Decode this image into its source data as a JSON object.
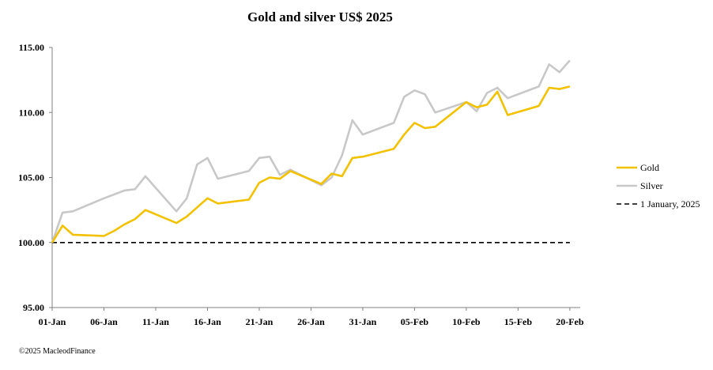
{
  "footer": {
    "copyright": "©2025 MacleodFinance"
  },
  "colors": {
    "gold": "#F2C100",
    "silver": "#C8C8C8",
    "reference": "#000000",
    "axis": "#808080"
  },
  "chart_data": {
    "type": "line",
    "title": "Gold and silver  US$ 2025",
    "xlabel": "",
    "ylabel": "",
    "ylim": [
      95,
      115
    ],
    "xlim": [
      "2025-01-01",
      "2025-02-21"
    ],
    "y_ticks": [
      "95.00",
      "100.00",
      "105.00",
      "110.00",
      "115.00"
    ],
    "x_ticks": [
      {
        "date": "2025-01-01",
        "label": "01-Jan"
      },
      {
        "date": "2025-01-06",
        "label": "06-Jan"
      },
      {
        "date": "2025-01-11",
        "label": "11-Jan"
      },
      {
        "date": "2025-01-16",
        "label": "16-Jan"
      },
      {
        "date": "2025-01-21",
        "label": "21-Jan"
      },
      {
        "date": "2025-01-26",
        "label": "26-Jan"
      },
      {
        "date": "2025-01-31",
        "label": "31-Jan"
      },
      {
        "date": "2025-02-05",
        "label": "05-Feb"
      },
      {
        "date": "2025-02-10",
        "label": "10-Feb"
      },
      {
        "date": "2025-02-15",
        "label": "15-Feb"
      },
      {
        "date": "2025-02-20",
        "label": "20-Feb"
      }
    ],
    "grid": false,
    "legend_position": "right",
    "series": [
      {
        "name": "Gold",
        "color": "#F2C100",
        "style": "solid",
        "points": [
          [
            "2025-01-01",
            100.0
          ],
          [
            "2025-01-02",
            101.3
          ],
          [
            "2025-01-03",
            100.6
          ],
          [
            "2025-01-06",
            100.5
          ],
          [
            "2025-01-07",
            100.9
          ],
          [
            "2025-01-08",
            101.4
          ],
          [
            "2025-01-09",
            101.8
          ],
          [
            "2025-01-10",
            102.5
          ],
          [
            "2025-01-13",
            101.5
          ],
          [
            "2025-01-14",
            102.0
          ],
          [
            "2025-01-15",
            102.7
          ],
          [
            "2025-01-16",
            103.4
          ],
          [
            "2025-01-17",
            103.0
          ],
          [
            "2025-01-20",
            103.3
          ],
          [
            "2025-01-21",
            104.6
          ],
          [
            "2025-01-22",
            105.0
          ],
          [
            "2025-01-23",
            104.9
          ],
          [
            "2025-01-24",
            105.5
          ],
          [
            "2025-01-27",
            104.5
          ],
          [
            "2025-01-28",
            105.3
          ],
          [
            "2025-01-29",
            105.1
          ],
          [
            "2025-01-30",
            106.5
          ],
          [
            "2025-01-31",
            106.6
          ],
          [
            "2025-02-03",
            107.2
          ],
          [
            "2025-02-04",
            108.3
          ],
          [
            "2025-02-05",
            109.2
          ],
          [
            "2025-02-06",
            108.8
          ],
          [
            "2025-02-07",
            108.9
          ],
          [
            "2025-02-10",
            110.8
          ],
          [
            "2025-02-11",
            110.4
          ],
          [
            "2025-02-12",
            110.6
          ],
          [
            "2025-02-13",
            111.6
          ],
          [
            "2025-02-14",
            109.8
          ],
          [
            "2025-02-17",
            110.5
          ],
          [
            "2025-02-18",
            111.9
          ],
          [
            "2025-02-19",
            111.8
          ],
          [
            "2025-02-20",
            112.0
          ]
        ]
      },
      {
        "name": "Silver",
        "color": "#C8C8C8",
        "style": "solid",
        "points": [
          [
            "2025-01-01",
            100.0
          ],
          [
            "2025-01-02",
            102.3
          ],
          [
            "2025-01-03",
            102.4
          ],
          [
            "2025-01-06",
            103.4
          ],
          [
            "2025-01-07",
            103.7
          ],
          [
            "2025-01-08",
            104.0
          ],
          [
            "2025-01-09",
            104.1
          ],
          [
            "2025-01-10",
            105.1
          ],
          [
            "2025-01-13",
            102.4
          ],
          [
            "2025-01-14",
            103.4
          ],
          [
            "2025-01-15",
            106.0
          ],
          [
            "2025-01-16",
            106.5
          ],
          [
            "2025-01-17",
            104.9
          ],
          [
            "2025-01-20",
            105.5
          ],
          [
            "2025-01-21",
            106.5
          ],
          [
            "2025-01-22",
            106.6
          ],
          [
            "2025-01-23",
            105.2
          ],
          [
            "2025-01-24",
            105.6
          ],
          [
            "2025-01-27",
            104.4
          ],
          [
            "2025-01-28",
            105.0
          ],
          [
            "2025-01-29",
            106.7
          ],
          [
            "2025-01-30",
            109.4
          ],
          [
            "2025-01-31",
            108.3
          ],
          [
            "2025-02-03",
            109.2
          ],
          [
            "2025-02-04",
            111.2
          ],
          [
            "2025-02-05",
            111.7
          ],
          [
            "2025-02-06",
            111.4
          ],
          [
            "2025-02-07",
            110.0
          ],
          [
            "2025-02-10",
            110.8
          ],
          [
            "2025-02-11",
            110.1
          ],
          [
            "2025-02-12",
            111.5
          ],
          [
            "2025-02-13",
            111.9
          ],
          [
            "2025-02-14",
            111.1
          ],
          [
            "2025-02-17",
            112.0
          ],
          [
            "2025-02-18",
            113.7
          ],
          [
            "2025-02-19",
            113.1
          ],
          [
            "2025-02-20",
            114.0
          ]
        ]
      },
      {
        "name": "1 January, 2025",
        "color": "#000000",
        "style": "dashed",
        "points": [
          [
            "2025-01-01",
            100.0
          ],
          [
            "2025-02-20",
            100.0
          ]
        ]
      }
    ]
  }
}
